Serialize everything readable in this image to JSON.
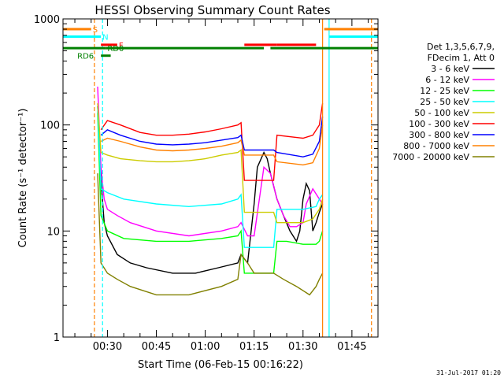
{
  "chart_data": {
    "type": "line",
    "title": "HESSI Observing Summary Count Rates",
    "xlabel": "Start Time (06-Feb-15 00:16:22)",
    "ylabel": "Count Rate (s⁻¹ detector⁻¹)",
    "y_scale": "log",
    "ylim": [
      1,
      1000
    ],
    "xlim": [
      "00:16:22",
      "01:53:00"
    ],
    "x_ticks": [
      "00:30",
      "00:45",
      "01:00",
      "01:15",
      "01:30",
      "01:45"
    ],
    "y_ticks": [
      "1",
      "10",
      "100",
      "1000"
    ],
    "legend_header": [
      "Det 1,3,5,6,7,9,",
      "FDecim 1, Att 0"
    ],
    "legend_position": "right",
    "timestamp": "31-Jul-2017 01:20",
    "series": [
      {
        "name": "3 - 6 keV",
        "color": "#000000",
        "x": [
          "00:27",
          "00:28",
          "00:29",
          "00:30",
          "00:33",
          "00:37",
          "00:42",
          "00:50",
          "00:57",
          "01:04",
          "01:10",
          "01:11",
          "01:13",
          "01:15",
          "01:16",
          "01:18",
          "01:19",
          "01:20",
          "01:22",
          "01:24",
          "01:26",
          "01:28",
          "01:29",
          "01:30",
          "01:31",
          "01:32",
          "01:33",
          "01:34",
          "01:35",
          "01:36"
        ],
        "values": [
          150,
          30,
          12,
          9,
          6,
          5,
          4.5,
          4,
          4,
          4.5,
          5,
          6,
          5,
          18,
          40,
          55,
          48,
          35,
          20,
          14,
          10,
          8,
          10,
          20,
          28,
          24,
          10,
          12,
          15,
          18
        ]
      },
      {
        "name": "6 - 12 keV",
        "color": "#ff00ff",
        "x": [
          "00:27",
          "00:28",
          "00:29",
          "00:30",
          "00:33",
          "00:37",
          "00:45",
          "00:55",
          "01:05",
          "01:10",
          "01:11",
          "01:13",
          "01:15",
          "01:18",
          "01:20",
          "01:22",
          "01:24",
          "01:26",
          "01:28",
          "01:30",
          "01:31",
          "01:33",
          "01:35",
          "01:36"
        ],
        "values": [
          230,
          40,
          20,
          16,
          14,
          12,
          10,
          9,
          10,
          11,
          12,
          9,
          9,
          40,
          35,
          20,
          14,
          11,
          11,
          12,
          18,
          25,
          20,
          18
        ]
      },
      {
        "name": "12 - 25 keV",
        "color": "#00ff00",
        "x": [
          "00:27",
          "00:28",
          "00:30",
          "00:35",
          "00:45",
          "00:55",
          "01:05",
          "01:10",
          "01:11",
          "01:12",
          "01:15",
          "01:18",
          "01:21",
          "01:22",
          "01:25",
          "01:30",
          "01:34",
          "01:35",
          "01:36"
        ],
        "values": [
          130,
          14,
          10,
          8.5,
          8,
          8,
          8.5,
          9,
          10,
          4,
          4,
          4,
          4,
          8,
          8,
          7.5,
          7.5,
          8,
          10
        ]
      },
      {
        "name": "25 - 50 keV",
        "color": "#00ffff",
        "x": [
          "00:27",
          "00:28",
          "00:30",
          "00:35",
          "00:45",
          "00:55",
          "01:05",
          "01:10",
          "01:11",
          "01:12",
          "01:21",
          "01:22",
          "01:30",
          "01:34",
          "01:35",
          "01:36"
        ],
        "values": [
          150,
          25,
          23,
          20,
          18,
          17,
          18,
          20,
          22,
          7,
          7,
          16,
          16,
          17,
          20,
          22
        ]
      },
      {
        "name": "50 - 100 keV",
        "color": "#cccc00",
        "x": [
          "00:27",
          "00:28",
          "00:30",
          "00:34",
          "00:40",
          "00:45",
          "00:50",
          "00:55",
          "01:00",
          "01:05",
          "01:10",
          "01:11",
          "01:12",
          "01:21",
          "01:22",
          "01:30",
          "01:33",
          "01:35",
          "01:36"
        ],
        "values": [
          160,
          55,
          52,
          48,
          46,
          45,
          45,
          46,
          48,
          52,
          55,
          58,
          15,
          15,
          12,
          12,
          13,
          16,
          20
        ]
      },
      {
        "name": "100 - 300 keV",
        "color": "#ff0000",
        "x": [
          "00:28",
          "00:30",
          "00:34",
          "00:40",
          "00:45",
          "00:50",
          "00:55",
          "01:00",
          "01:05",
          "01:10",
          "01:11",
          "01:12",
          "01:21",
          "01:22",
          "01:30",
          "01:33",
          "01:35",
          "01:36"
        ],
        "values": [
          90,
          110,
          100,
          85,
          80,
          80,
          82,
          86,
          92,
          100,
          105,
          30,
          30,
          80,
          75,
          80,
          100,
          160
        ]
      },
      {
        "name": "300 - 800 keV",
        "color": "#0000ff",
        "x": [
          "00:28",
          "00:30",
          "00:34",
          "00:40",
          "00:45",
          "00:50",
          "00:55",
          "01:00",
          "01:05",
          "01:10",
          "01:11",
          "01:12",
          "01:21",
          "01:22",
          "01:30",
          "01:33",
          "01:35",
          "01:36"
        ],
        "values": [
          80,
          90,
          80,
          70,
          66,
          65,
          66,
          68,
          72,
          76,
          80,
          58,
          58,
          55,
          50,
          53,
          70,
          120
        ]
      },
      {
        "name": "800 - 7000 keV",
        "color": "#ff8000",
        "x": [
          "00:28",
          "00:30",
          "00:34",
          "00:40",
          "00:45",
          "00:50",
          "00:55",
          "01:00",
          "01:05",
          "01:10",
          "01:11",
          "01:12",
          "01:21",
          "01:22",
          "01:30",
          "01:33",
          "01:35",
          "01:36"
        ],
        "values": [
          70,
          75,
          70,
          62,
          58,
          57,
          58,
          60,
          63,
          68,
          72,
          52,
          52,
          45,
          42,
          44,
          60,
          100
        ]
      },
      {
        "name": "7000 - 20000 keV",
        "color": "#808000",
        "x": [
          "00:27",
          "00:28",
          "00:30",
          "00:33",
          "00:37",
          "00:45",
          "00:55",
          "01:05",
          "01:10",
          "01:11",
          "01:13",
          "01:15",
          "01:18",
          "01:21",
          "01:24",
          "01:28",
          "01:32",
          "01:34",
          "01:35",
          "01:36"
        ],
        "values": [
          35,
          5,
          4,
          3.5,
          3,
          2.5,
          2.5,
          3,
          3.5,
          6,
          5,
          4,
          4,
          4,
          3.5,
          3,
          2.5,
          3,
          3.5,
          4
        ]
      }
    ],
    "flags": {
      "SAA": {
        "label": "S",
        "color": "#ff8000",
        "level_y": 800,
        "segments": [
          [
            "00:16:22",
            "00:25:00"
          ],
          [
            "01:36:30",
            "01:53:00"
          ]
        ]
      },
      "Night": {
        "label": "N",
        "color": "#00ffff",
        "level_y": 680,
        "segments": [
          [
            "00:16:22",
            "00:28:00"
          ],
          [
            "01:38:00",
            "01:53:00"
          ]
        ]
      },
      "Flare": {
        "label": "F",
        "color": "#ff0000",
        "level_y": 570,
        "segments": [
          [
            "00:28:00",
            "00:33:00"
          ],
          [
            "01:12:00",
            "01:22:00"
          ],
          [
            "01:22:00",
            "01:34:00"
          ]
        ]
      },
      "RD0": {
        "label": "RD0",
        "color": "#008000",
        "level_y": 530,
        "segments": [
          [
            "00:16:22",
            "00:29:30"
          ],
          [
            "00:29:30",
            "01:10:00"
          ],
          [
            "01:10:00",
            "01:18:00"
          ],
          [
            "01:20:00",
            "01:53:00"
          ]
        ]
      },
      "RD6": {
        "label": "RD6",
        "color": "#008000",
        "level_y": 450,
        "segments": [
          [
            "00:28:00",
            "00:31:00"
          ]
        ]
      }
    },
    "vertical_lines": [
      {
        "time": "00:26:00",
        "color": "#ff8000",
        "style": "dashed"
      },
      {
        "time": "00:28:30",
        "color": "#00ffff",
        "style": "dashed"
      },
      {
        "time": "01:36:00",
        "color": "#ff8000",
        "style": "solid"
      },
      {
        "time": "01:38:00",
        "color": "#00ffff",
        "style": "solid"
      },
      {
        "time": "01:51:00",
        "color": "#ff8000",
        "style": "dashed"
      }
    ]
  }
}
